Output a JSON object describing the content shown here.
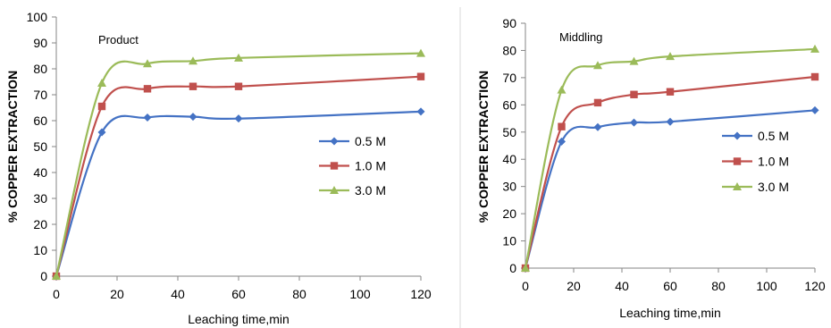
{
  "chart_data": [
    {
      "type": "line",
      "annotation": "Product",
      "xlabel": "Leaching time,min",
      "ylabel": "% COPPER EXTRACTION",
      "xlim": [
        0,
        120
      ],
      "ylim": [
        0,
        100
      ],
      "xticks": [
        "0",
        "20",
        "40",
        "60",
        "80",
        "100",
        "120"
      ],
      "yticks": [
        "0",
        "10",
        "20",
        "30",
        "40",
        "50",
        "60",
        "70",
        "80",
        "90",
        "100"
      ],
      "grid": false,
      "legend_position": "right",
      "x": [
        0,
        15,
        30,
        45,
        60,
        120
      ],
      "series": [
        {
          "name": "0.5 M",
          "color": "#4472C4",
          "marker": "diamond",
          "values": [
            0,
            55.5,
            61.2,
            61.5,
            60.8,
            63.5
          ]
        },
        {
          "name": "1.0 M",
          "color": "#C0504D",
          "marker": "square",
          "values": [
            0,
            65.5,
            72.3,
            73.2,
            73.2,
            77.0
          ]
        },
        {
          "name": "3.0 M",
          "color": "#9BBB59",
          "marker": "triangle",
          "values": [
            0,
            74.5,
            82.0,
            83.0,
            84.2,
            86.0
          ]
        }
      ]
    },
    {
      "type": "line",
      "annotation": "Middling",
      "xlabel": "Leaching time,min",
      "ylabel": "% COPPER EXTRACTION",
      "xlim": [
        0,
        120
      ],
      "ylim": [
        0,
        90
      ],
      "xticks": [
        "0",
        "20",
        "40",
        "60",
        "80",
        "100",
        "120"
      ],
      "yticks": [
        "0",
        "10",
        "20",
        "30",
        "40",
        "50",
        "60",
        "70",
        "80",
        "90"
      ],
      "grid": false,
      "legend_position": "right",
      "x": [
        0,
        15,
        30,
        45,
        60,
        120
      ],
      "series": [
        {
          "name": "0.5 M",
          "color": "#4472C4",
          "marker": "diamond",
          "values": [
            0,
            46.5,
            51.8,
            53.5,
            53.8,
            58.0
          ]
        },
        {
          "name": "1.0 M",
          "color": "#C0504D",
          "marker": "square",
          "values": [
            0,
            52.0,
            60.8,
            63.8,
            64.8,
            70.3
          ]
        },
        {
          "name": "3.0 M",
          "color": "#9BBB59",
          "marker": "triangle",
          "values": [
            0,
            65.5,
            74.5,
            76.0,
            77.8,
            80.5
          ]
        }
      ]
    }
  ]
}
